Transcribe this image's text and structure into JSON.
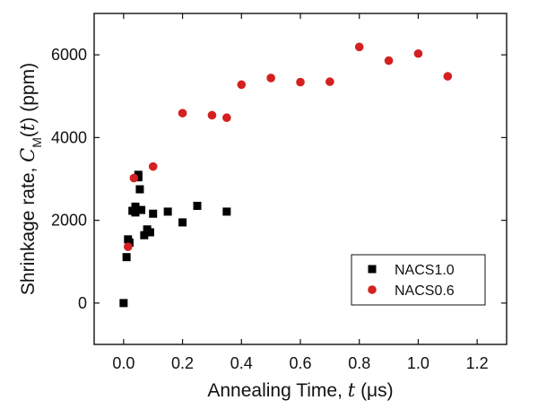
{
  "chart_data": {
    "type": "scatter",
    "title": "",
    "xlabel": {
      "prefix": "Annealing Time, ",
      "var": "t",
      "suffix": " (μs)"
    },
    "ylabel": {
      "prefix": "Shrinkage rate, ",
      "var": "C",
      "sub": "M",
      "open": "(",
      "arg": "t",
      "close": ")",
      "unit": " (ppm)"
    },
    "xlim": [
      -0.1,
      1.3
    ],
    "ylim": [
      -1000,
      7000
    ],
    "xticks": [
      0.0,
      0.2,
      0.4,
      0.6,
      0.8,
      1.0,
      1.2
    ],
    "xtick_labels": [
      "0.0",
      "0.2",
      "0.4",
      "0.6",
      "0.8",
      "1.0",
      "1.2"
    ],
    "yticks": [
      0,
      2000,
      4000,
      6000
    ],
    "ytick_labels": [
      "0",
      "2000",
      "4000",
      "6000"
    ],
    "grid": false,
    "legend_position": "bottom-right",
    "series": [
      {
        "name": "NACS1.0",
        "marker": "square",
        "color": "#000000",
        "points": [
          [
            0.0,
            0
          ],
          [
            0.01,
            1110
          ],
          [
            0.015,
            1540
          ],
          [
            0.02,
            1460
          ],
          [
            0.03,
            2230
          ],
          [
            0.04,
            2190
          ],
          [
            0.04,
            2330
          ],
          [
            0.05,
            3100
          ],
          [
            0.05,
            3040
          ],
          [
            0.055,
            2750
          ],
          [
            0.06,
            2250
          ],
          [
            0.07,
            1640
          ],
          [
            0.08,
            1780
          ],
          [
            0.09,
            1710
          ],
          [
            0.1,
            2160
          ],
          [
            0.15,
            2210
          ],
          [
            0.2,
            1950
          ],
          [
            0.25,
            2350
          ],
          [
            0.35,
            2210
          ]
        ]
      },
      {
        "name": "NACS0.6",
        "marker": "circle",
        "color": "#d42020",
        "points": [
          [
            0.015,
            1360
          ],
          [
            0.035,
            3020
          ],
          [
            0.1,
            3300
          ],
          [
            0.2,
            4590
          ],
          [
            0.3,
            4540
          ],
          [
            0.35,
            4480
          ],
          [
            0.4,
            5280
          ],
          [
            0.5,
            5440
          ],
          [
            0.6,
            5340
          ],
          [
            0.7,
            5350
          ],
          [
            0.8,
            6190
          ],
          [
            0.9,
            5860
          ],
          [
            1.0,
            6030
          ],
          [
            1.1,
            5480
          ]
        ]
      }
    ]
  }
}
